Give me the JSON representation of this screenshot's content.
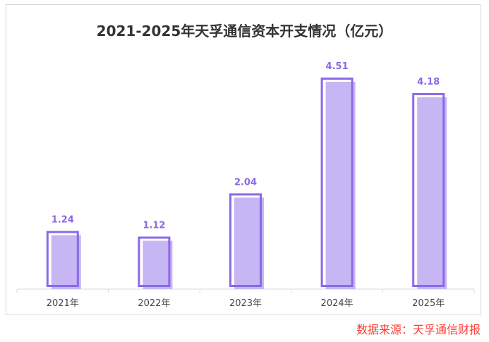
{
  "chart_data": {
    "type": "bar",
    "title": "2021-2025年天孚通信资本开支情况（亿元）",
    "categories": [
      "2021年",
      "2022年",
      "2023年",
      "2024年",
      "2025年"
    ],
    "values": [
      1.24,
      1.12,
      2.04,
      4.51,
      4.18
    ],
    "data_labels": [
      "1.24",
      "1.12",
      "2.04",
      "4.51",
      "4.18"
    ],
    "xlabel": "",
    "ylabel": "",
    "ylim": [
      0,
      4.6
    ],
    "grid": false,
    "colors": {
      "outline": "#8b68e8",
      "fill": "#c6b6f3",
      "label": "#8b68e8"
    }
  },
  "source": "数据来源：天孚通信财报"
}
